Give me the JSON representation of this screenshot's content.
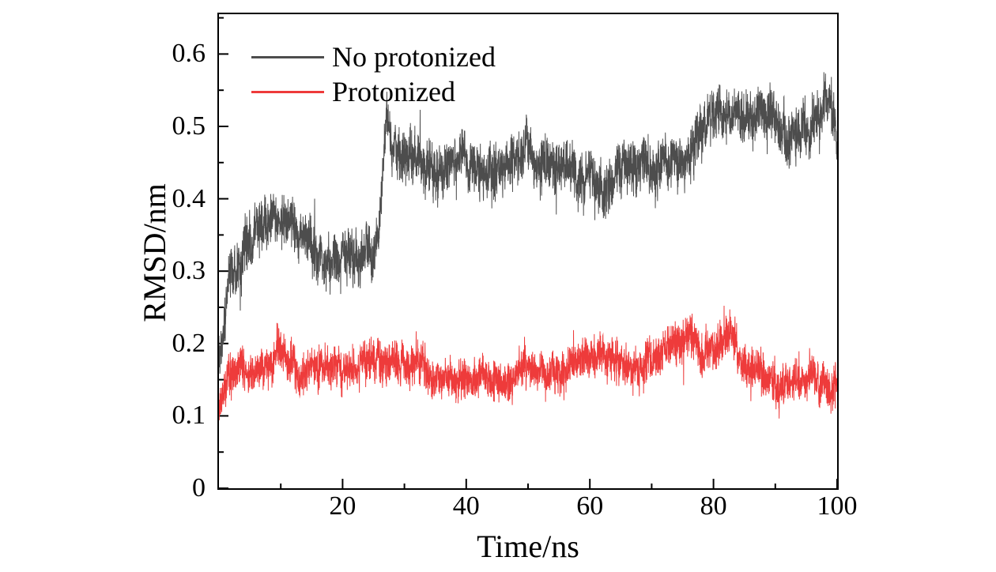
{
  "chart_data": {
    "type": "line",
    "title": "",
    "xlabel": "Time/ns",
    "ylabel": "RMSD/nm",
    "xlim": [
      0,
      100
    ],
    "ylim": [
      0,
      0.655
    ],
    "x_ticks": [
      20,
      40,
      60,
      80,
      100
    ],
    "x_tick_labels": [
      "20",
      "40",
      "60",
      "80",
      "100"
    ],
    "y_ticks": [
      0,
      0.1,
      0.2,
      0.3,
      0.4,
      0.5,
      0.6
    ],
    "y_tick_labels": [
      "0",
      "0.1",
      "0.2",
      "0.3",
      "0.4",
      "0.5",
      "0.6"
    ],
    "grid": false,
    "legend_position": "top-left",
    "axis_color": "#000000",
    "series": [
      {
        "name": "No protonized",
        "color": "#4d4d4d",
        "noise_fast": 0.04,
        "noise_slow": 0.02,
        "trend": {
          "x": [
            0,
            0.6,
            1.2,
            2,
            3,
            4.5,
            6,
            8,
            9.5,
            11,
            13,
            15,
            17,
            19,
            21,
            23,
            25,
            26,
            27,
            28,
            30,
            33,
            36,
            39,
            42,
            45,
            48,
            51,
            54,
            57,
            60,
            62,
            64,
            67,
            70,
            73,
            76,
            78,
            80,
            82,
            84,
            86,
            88,
            90,
            92,
            94,
            96,
            98,
            99.5,
            100
          ],
          "y": [
            0.18,
            0.21,
            0.26,
            0.3,
            0.32,
            0.335,
            0.35,
            0.365,
            0.375,
            0.36,
            0.345,
            0.345,
            0.335,
            0.33,
            0.325,
            0.315,
            0.32,
            0.38,
            0.5,
            0.46,
            0.45,
            0.455,
            0.45,
            0.445,
            0.44,
            0.44,
            0.455,
            0.455,
            0.44,
            0.445,
            0.43,
            0.415,
            0.44,
            0.45,
            0.44,
            0.45,
            0.465,
            0.49,
            0.515,
            0.52,
            0.51,
            0.515,
            0.52,
            0.5,
            0.49,
            0.49,
            0.5,
            0.535,
            0.525,
            0.47
          ]
        }
      },
      {
        "name": "Protonized",
        "color": "#ee3b3b",
        "noise_fast": 0.032,
        "noise_slow": 0.014,
        "trend": {
          "x": [
            0,
            0.5,
            1,
            2,
            4,
            6,
            8,
            9.5,
            11,
            13,
            15,
            16.5,
            18,
            20,
            23,
            26,
            29,
            32,
            35,
            38,
            41,
            44,
            46,
            49,
            52,
            55,
            58,
            61,
            63,
            65,
            68,
            70,
            72,
            74,
            76,
            78,
            80,
            82,
            84,
            86,
            88,
            90,
            92,
            94,
            96,
            98,
            100
          ],
          "y": [
            0.1,
            0.125,
            0.145,
            0.155,
            0.16,
            0.165,
            0.17,
            0.185,
            0.165,
            0.16,
            0.17,
            0.185,
            0.165,
            0.165,
            0.17,
            0.165,
            0.175,
            0.17,
            0.165,
            0.155,
            0.15,
            0.15,
            0.14,
            0.155,
            0.16,
            0.165,
            0.17,
            0.185,
            0.175,
            0.165,
            0.17,
            0.175,
            0.18,
            0.21,
            0.215,
            0.19,
            0.19,
            0.215,
            0.19,
            0.165,
            0.15,
            0.14,
            0.145,
            0.15,
            0.15,
            0.155,
            0.14
          ]
        }
      }
    ]
  }
}
